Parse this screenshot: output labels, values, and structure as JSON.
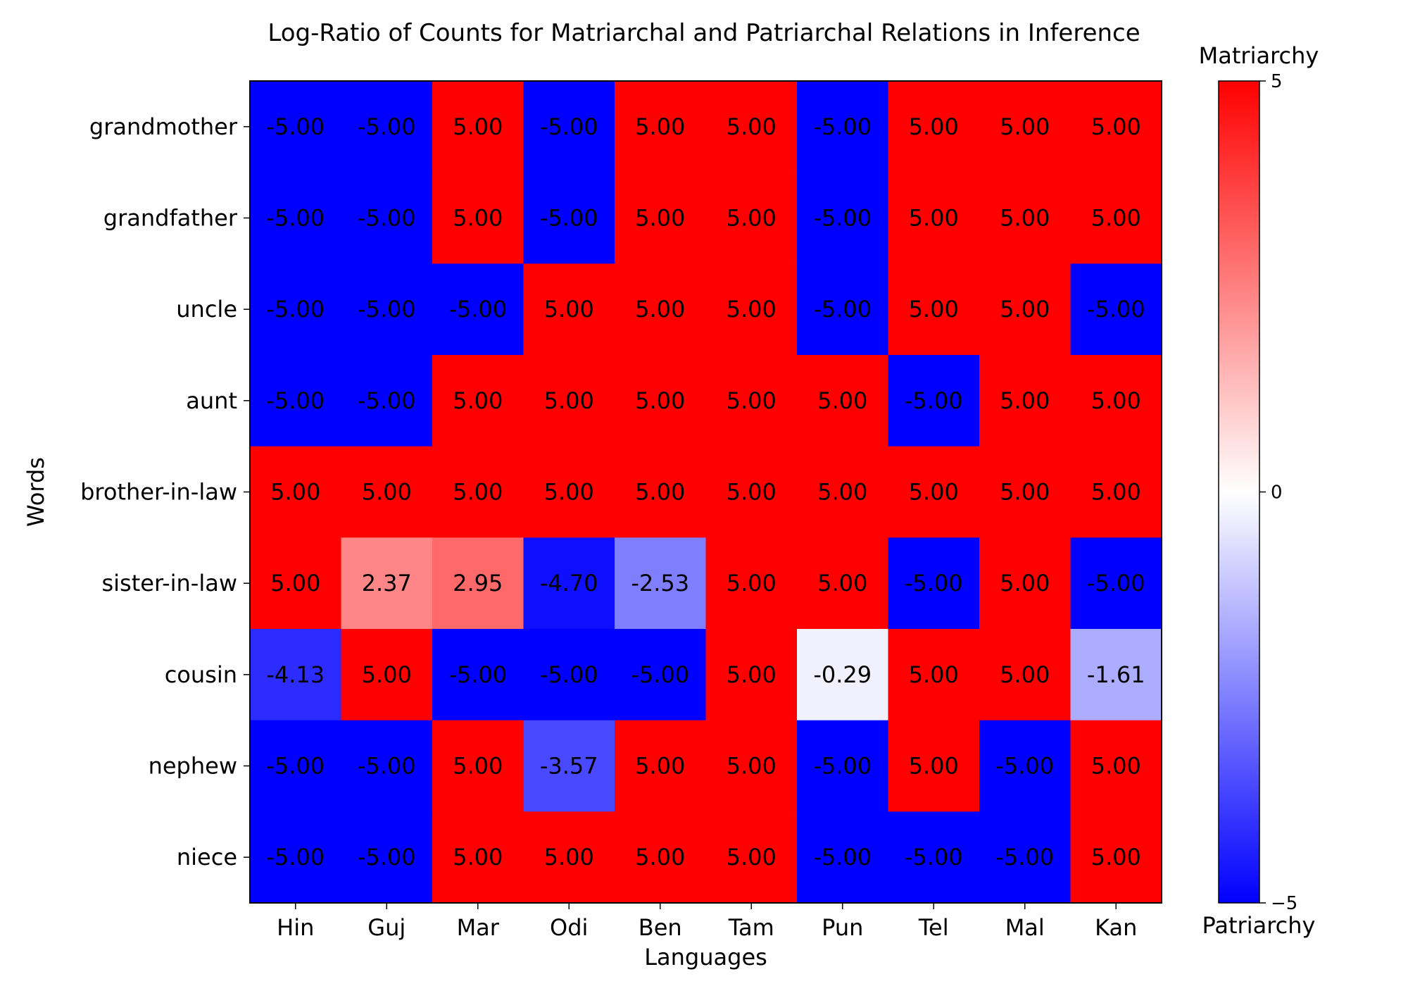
{
  "chart_data": {
    "type": "heatmap",
    "title": "Log-Ratio of Counts for Matriarchal and Patriarchal Relations in Inference",
    "xlabel": "Languages",
    "ylabel": "Words",
    "x_categories": [
      "Hin",
      "Guj",
      "Mar",
      "Odi",
      "Ben",
      "Tam",
      "Pun",
      "Tel",
      "Mal",
      "Kan"
    ],
    "y_categories": [
      "grandmother",
      "grandfather",
      "uncle",
      "aunt",
      "brother-in-law",
      "sister-in-law",
      "cousin",
      "nephew",
      "niece"
    ],
    "values": [
      [
        -5.0,
        -5.0,
        5.0,
        -5.0,
        5.0,
        5.0,
        -5.0,
        5.0,
        5.0,
        5.0
      ],
      [
        -5.0,
        -5.0,
        5.0,
        -5.0,
        5.0,
        5.0,
        -5.0,
        5.0,
        5.0,
        5.0
      ],
      [
        -5.0,
        -5.0,
        -5.0,
        5.0,
        5.0,
        5.0,
        -5.0,
        5.0,
        5.0,
        -5.0
      ],
      [
        -5.0,
        -5.0,
        5.0,
        5.0,
        5.0,
        5.0,
        5.0,
        -5.0,
        5.0,
        5.0
      ],
      [
        5.0,
        5.0,
        5.0,
        5.0,
        5.0,
        5.0,
        5.0,
        5.0,
        5.0,
        5.0
      ],
      [
        5.0,
        2.37,
        2.95,
        -4.7,
        -2.53,
        5.0,
        5.0,
        -5.0,
        5.0,
        -5.0
      ],
      [
        -4.13,
        5.0,
        -5.0,
        -5.0,
        -5.0,
        5.0,
        -0.29,
        5.0,
        5.0,
        -1.61
      ],
      [
        -5.0,
        -5.0,
        5.0,
        -3.57,
        5.0,
        5.0,
        -5.0,
        5.0,
        -5.0,
        5.0
      ],
      [
        -5.0,
        -5.0,
        5.0,
        5.0,
        5.0,
        5.0,
        -5.0,
        -5.0,
        -5.0,
        5.0
      ]
    ],
    "value_format": "2 decimals",
    "colormap": "bwr",
    "vmin": -5,
    "vmax": 5,
    "colorbar": {
      "top_label": "Matriarchy",
      "bottom_label": "Patriarchy",
      "ticks": [
        5,
        0,
        -5
      ],
      "tick_labels": [
        "5",
        "0",
        "−5"
      ]
    },
    "colors": {
      "low": "#0000ff",
      "mid": "#ffffff",
      "high": "#ff0000"
    }
  }
}
